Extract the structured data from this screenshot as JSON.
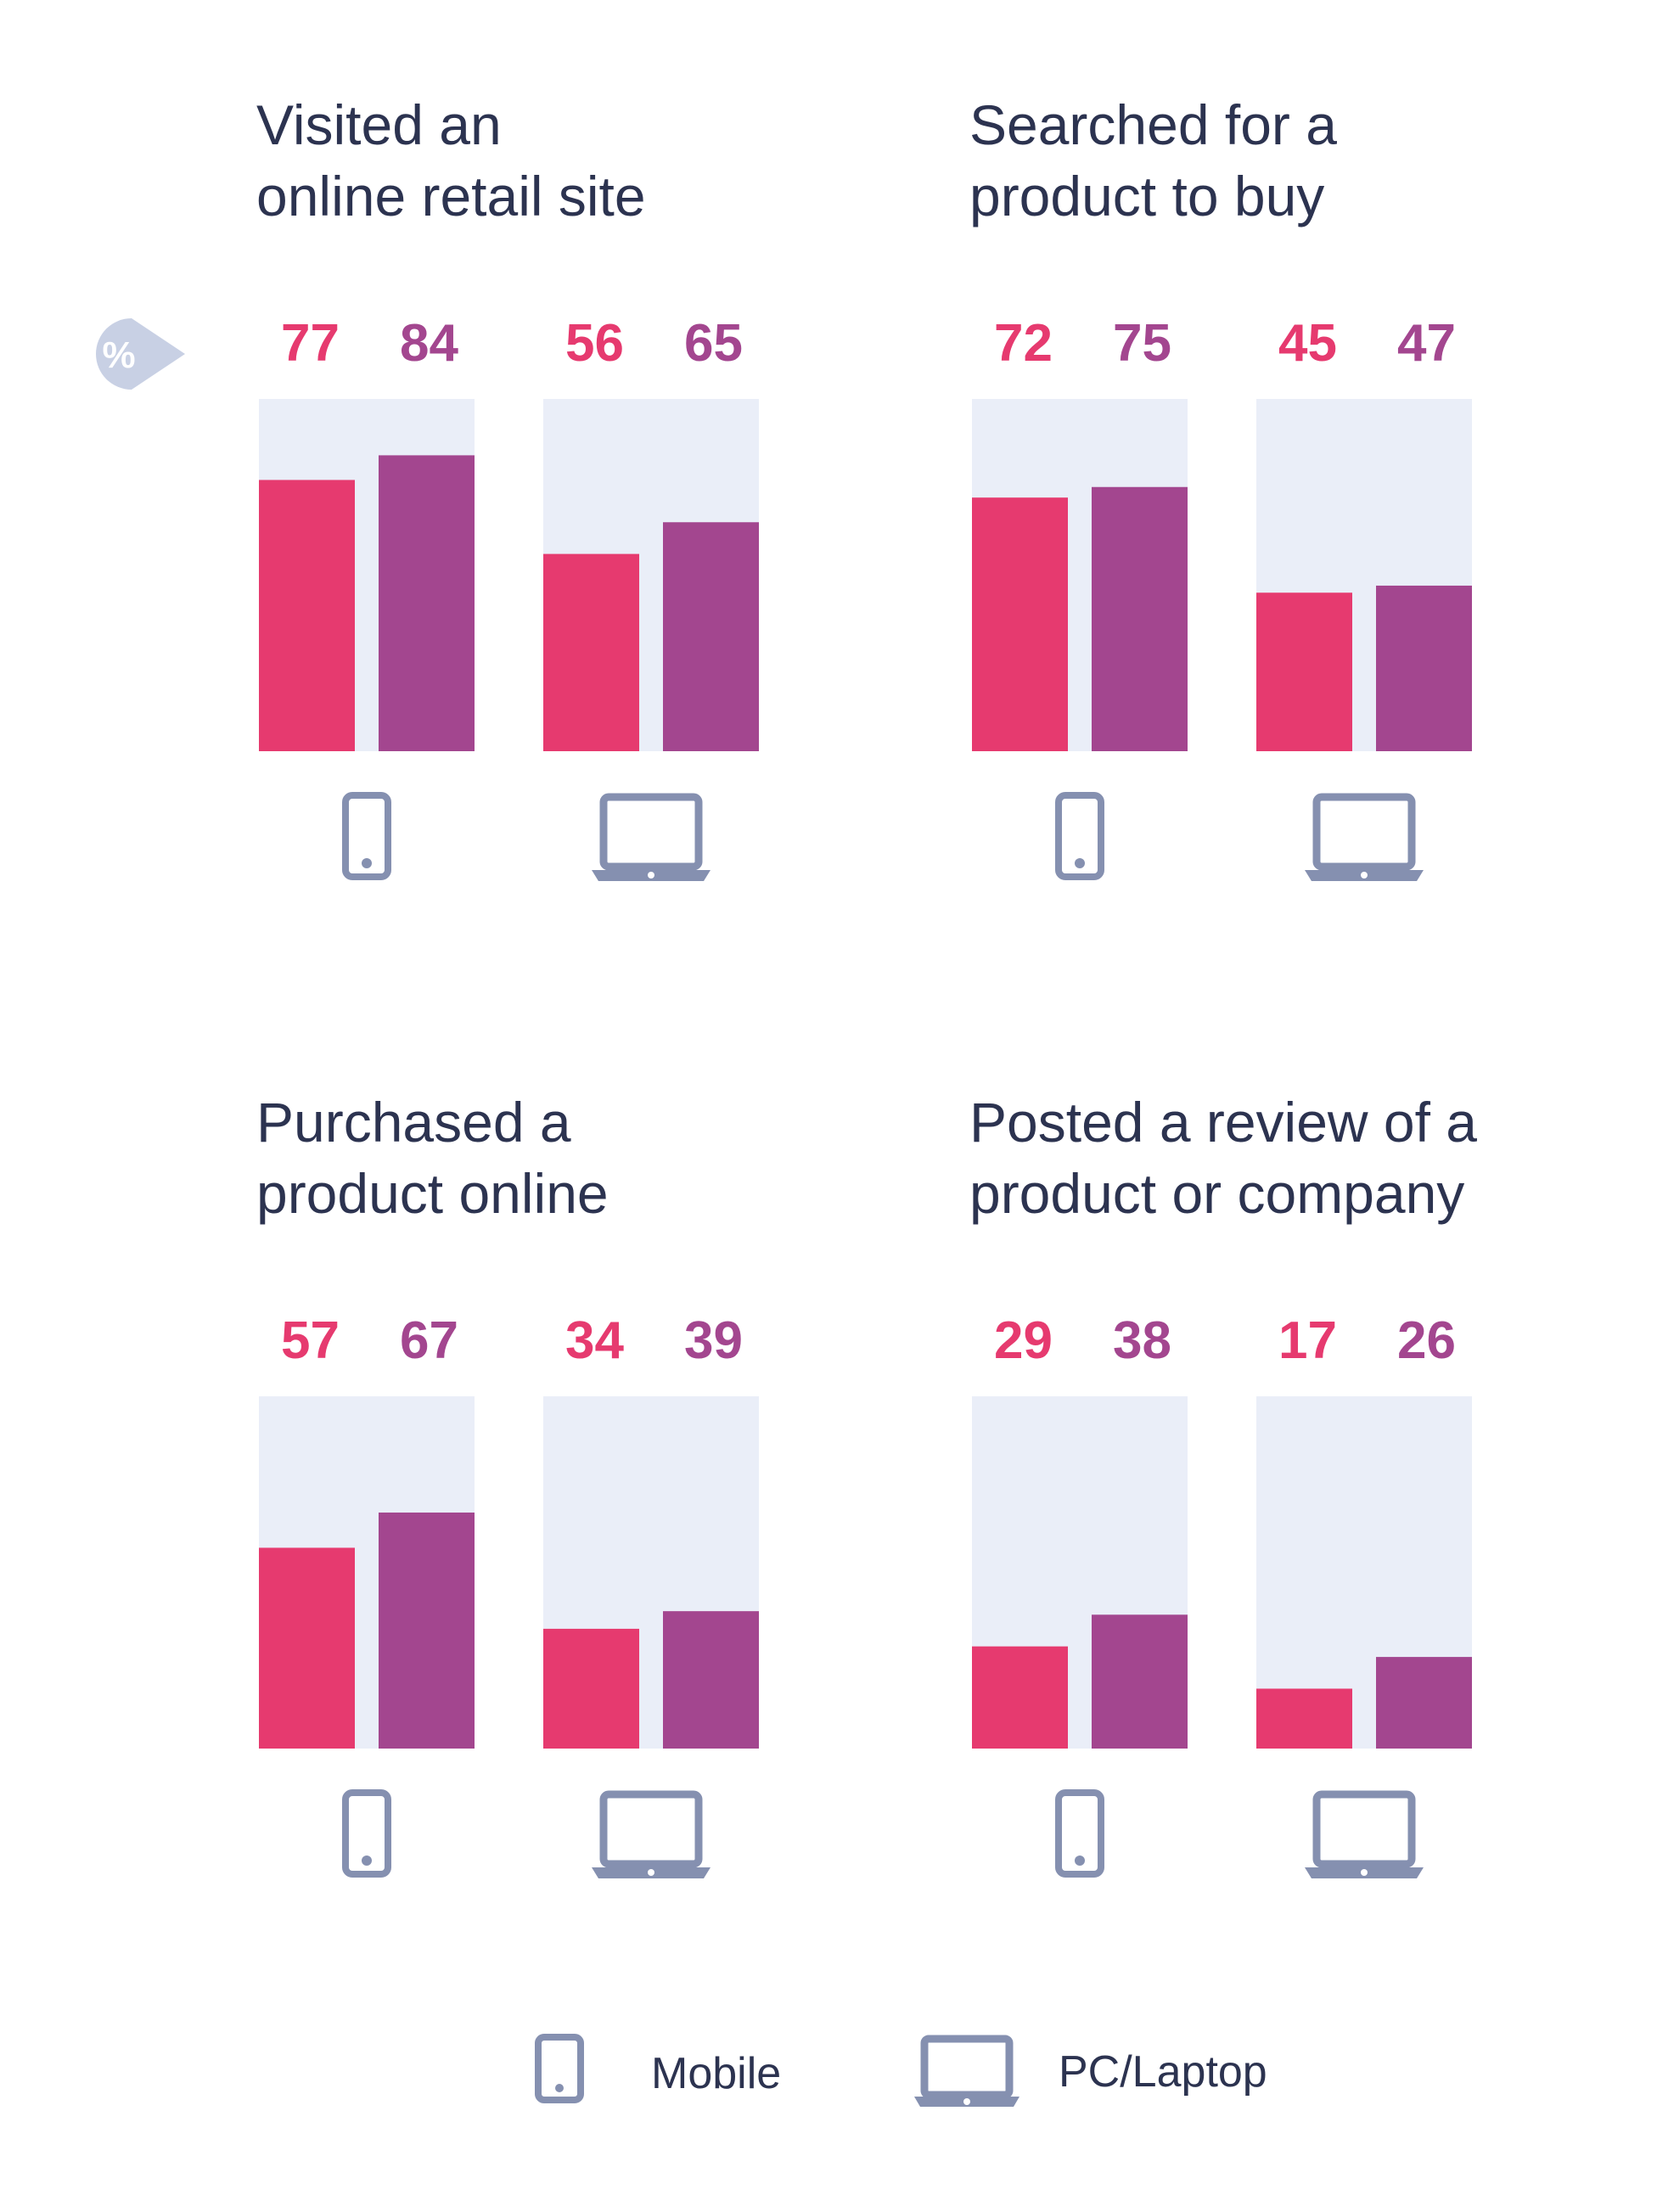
{
  "unit_badge": "%",
  "colors": {
    "mobile_bar": "#e63a6f",
    "pc_bar": "#a3468f",
    "track": "#eaeef8",
    "icon": "#8590b0",
    "badge": "#c8d0e4",
    "title": "#2c3350"
  },
  "legend": [
    {
      "icon": "phone-icon",
      "label": "Mobile"
    },
    {
      "icon": "laptop-icon",
      "label": "PC/Laptop"
    }
  ],
  "chart_data": [
    {
      "type": "bar",
      "title": [
        "Visited an",
        "online retail site"
      ],
      "groups": [
        {
          "device": "Mobile",
          "values": [
            77,
            84
          ]
        },
        {
          "device": "PC/Laptop",
          "values": [
            56,
            65
          ]
        }
      ],
      "ylim": [
        0,
        100
      ]
    },
    {
      "type": "bar",
      "title": [
        "Searched for a",
        "product to buy"
      ],
      "groups": [
        {
          "device": "Mobile",
          "values": [
            72,
            75
          ]
        },
        {
          "device": "PC/Laptop",
          "values": [
            45,
            47
          ]
        }
      ],
      "ylim": [
        0,
        100
      ]
    },
    {
      "type": "bar",
      "title": [
        "Purchased a",
        "product online"
      ],
      "groups": [
        {
          "device": "Mobile",
          "values": [
            57,
            67
          ]
        },
        {
          "device": "PC/Laptop",
          "values": [
            34,
            39
          ]
        }
      ],
      "ylim": [
        0,
        100
      ]
    },
    {
      "type": "bar",
      "title": [
        "Posted a review of a",
        "product or company"
      ],
      "groups": [
        {
          "device": "Mobile",
          "values": [
            29,
            38
          ]
        },
        {
          "device": "PC/Laptop",
          "values": [
            17,
            26
          ]
        }
      ],
      "ylim": [
        0,
        100
      ]
    }
  ]
}
